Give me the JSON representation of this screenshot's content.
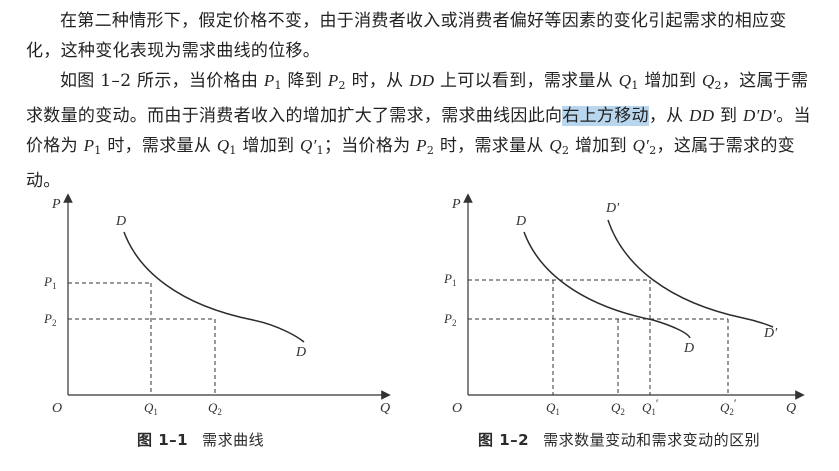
{
  "para1": {
    "text": "在第二种情形下，假定价格不变，由于消费者收入或消费者偏好等因素的变化引起需求的相应变化，这种变化表现为需求曲线的位移。"
  },
  "para2": {
    "t1": "如图 1–2 所示，当价格由 ",
    "P": "P",
    "s1": "1",
    "t2": " 降到 ",
    "s2": "2",
    "t3": " 时，从 ",
    "DD": "DD",
    "t4": " 上可以看到，需求量从 ",
    "Q": "Q",
    "t5": " 增加到 ",
    "t6": "，这属于需求数量的变动。而由于消费者收入的增加扩大了需求，需求曲线因此向",
    "highlight": "右上方移动",
    "t7": "，从 ",
    "t8": " 到 ",
    "DpDp": "D′D′",
    "t9": "。当价格为 ",
    "t10": " 时，需求量从 ",
    "Qp": "Q′",
    "t11": "；当价格为 ",
    "t12": "，这属于需求的变动。"
  },
  "figure1": {
    "axis_p": "P",
    "axis_q": "Q",
    "origin": "O",
    "p1": "P",
    "p1_sub": "1",
    "p2": "P",
    "p2_sub": "2",
    "q1": "Q",
    "q1_sub": "1",
    "q2": "Q",
    "q2_sub": "2",
    "curve_top": "D",
    "curve_bottom": "D",
    "caption_num": "图 1–1",
    "caption_text": "需求曲线"
  },
  "figure2": {
    "axis_p": "P",
    "axis_q": "Q",
    "origin": "O",
    "p1": "P",
    "p1_sub": "1",
    "p2": "P",
    "p2_sub": "2",
    "q1": "Q",
    "q1_sub": "1",
    "q2": "Q",
    "q2_sub": "2",
    "q1p": "Q",
    "q1p_sub": "1",
    "q1p_prime": "′",
    "q2p": "Q",
    "q2p_sub": "2",
    "q2p_prime": "′",
    "curve_d_top": "D",
    "curve_d_bottom": "D",
    "curve_dp_top": "D′",
    "curve_dp_bottom": "D′",
    "caption_num": "图 1–2",
    "caption_text": "需求数量变动和需求变动的区别"
  }
}
